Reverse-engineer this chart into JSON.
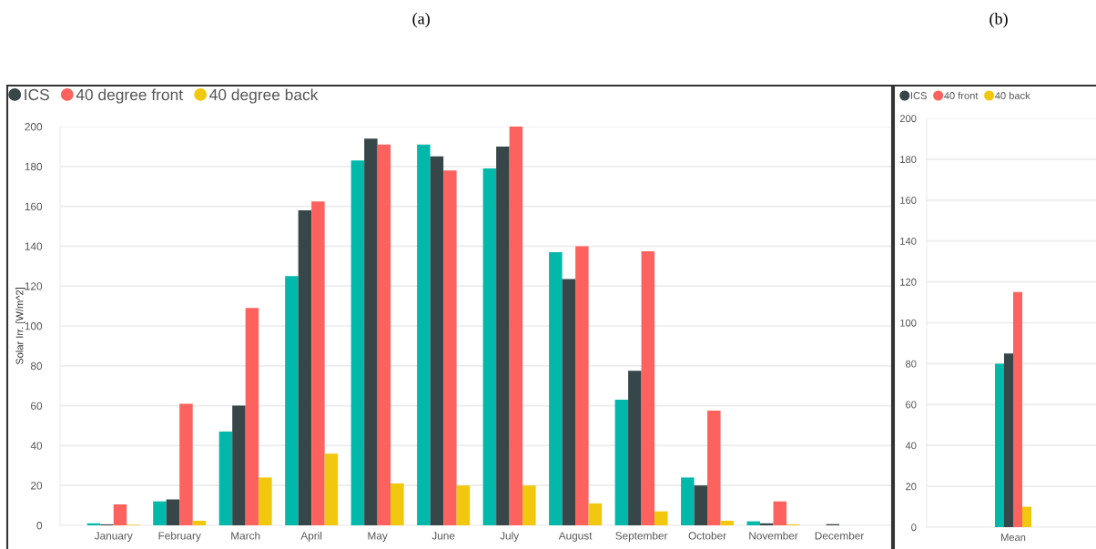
{
  "chart_data": [
    {
      "type": "bar",
      "title": "(a)",
      "ylabel": "Solar Irr. [W/m^2]",
      "categories": [
        "January",
        "February",
        "March",
        "April",
        "May",
        "June",
        "July",
        "August",
        "September",
        "October",
        "November",
        "December"
      ],
      "series": [
        {
          "color": "#01b8aa",
          "values": [
            1,
            12,
            47,
            125,
            183,
            191,
            179,
            137,
            63,
            24,
            2,
            0
          ]
        },
        {
          "name": "ICS",
          "color": "#374649",
          "values": [
            0.5,
            13,
            60,
            158,
            194,
            185,
            190,
            123.5,
            77.5,
            20,
            1,
            0.6
          ]
        },
        {
          "name": "40 degree front",
          "color": "#fd625e",
          "values": [
            10.5,
            61,
            109,
            162.5,
            191,
            178,
            200,
            140,
            137.5,
            57.5,
            12,
            0
          ]
        },
        {
          "name": "40 degree back",
          "color": "#f2c80f",
          "values": [
            0.3,
            2.3,
            24,
            36,
            21,
            20,
            20,
            11,
            7,
            2.3,
            0.5,
            0
          ]
        }
      ],
      "ylim": [
        0,
        200
      ],
      "yticks": [
        0,
        20,
        40,
        60,
        80,
        100,
        120,
        140,
        160,
        180,
        200
      ],
      "grid": "y",
      "legend": "top left"
    },
    {
      "type": "bar",
      "title": "(b)",
      "categories": [
        "Mean"
      ],
      "series": [
        {
          "color": "#01b8aa",
          "values": [
            80
          ]
        },
        {
          "name": "ICS",
          "color": "#374649",
          "values": [
            85
          ]
        },
        {
          "name": "40 front",
          "color": "#fd625e",
          "values": [
            115
          ]
        },
        {
          "name": "40 back",
          "color": "#f2c80f",
          "values": [
            10
          ]
        }
      ],
      "ylim": [
        0,
        200
      ],
      "yticks": [
        0,
        20,
        40,
        60,
        80,
        100,
        120,
        140,
        160,
        180,
        200
      ],
      "grid": "y",
      "legend": "top left"
    }
  ]
}
